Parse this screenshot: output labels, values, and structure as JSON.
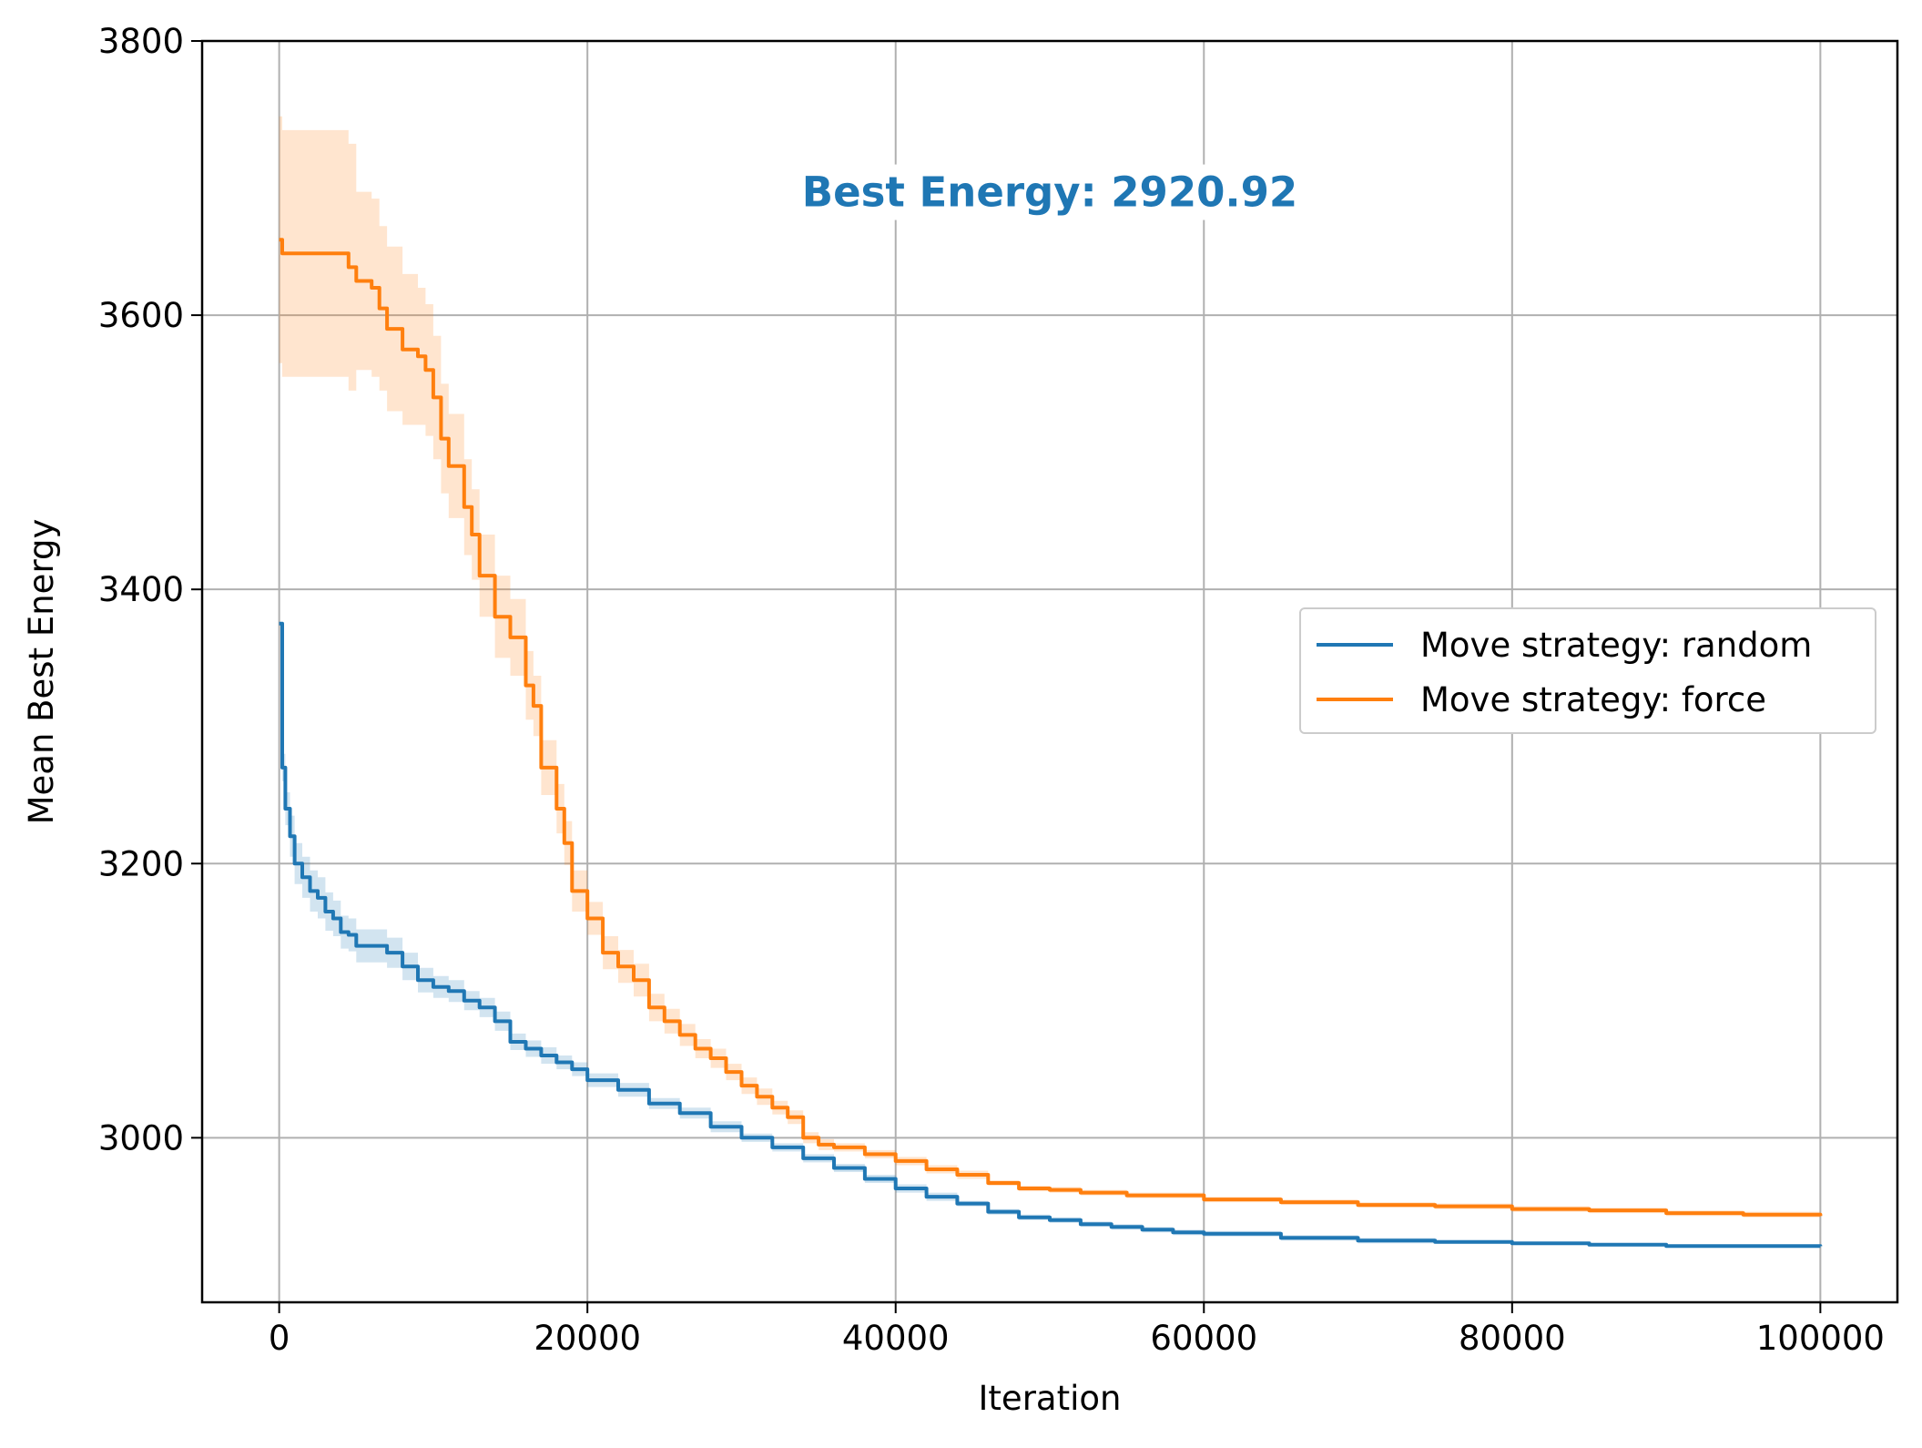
{
  "chart_data": {
    "type": "line",
    "title": "",
    "xlabel": "Iteration",
    "ylabel": "Mean Best Energy",
    "xlim": [
      -5000,
      105000
    ],
    "ylim": [
      2880,
      3800
    ],
    "xticks": [
      0,
      20000,
      40000,
      60000,
      80000,
      100000
    ],
    "xtick_labels": [
      "0",
      "20000",
      "40000",
      "60000",
      "80000",
      "100000"
    ],
    "yticks": [
      3000,
      3200,
      3400,
      3600,
      3800
    ],
    "ytick_labels": [
      "3000",
      "3200",
      "3400",
      "3600",
      "3800"
    ],
    "grid": true,
    "legend_position": "center-right",
    "annotation": {
      "text": "Best Energy: 2920.92",
      "x": 50000,
      "y": 3690,
      "color": "#1f77b4"
    },
    "series": [
      {
        "name": "Move strategy: random",
        "color": "#1f77b4",
        "band_color": "#1f77b4",
        "x": [
          0,
          200,
          400,
          700,
          1000,
          1500,
          2000,
          2500,
          3000,
          3500,
          4000,
          4500,
          5000,
          6000,
          7000,
          8000,
          9000,
          10000,
          11000,
          12000,
          13000,
          14000,
          15000,
          16000,
          17000,
          18000,
          19000,
          20000,
          22000,
          24000,
          26000,
          28000,
          30000,
          32000,
          34000,
          36000,
          38000,
          40000,
          42000,
          44000,
          46000,
          48000,
          50000,
          52000,
          54000,
          56000,
          58000,
          60000,
          65000,
          70000,
          75000,
          80000,
          85000,
          90000,
          95000,
          100000
        ],
        "y": [
          3375,
          3270,
          3240,
          3220,
          3200,
          3190,
          3180,
          3175,
          3165,
          3160,
          3150,
          3148,
          3140,
          3140,
          3135,
          3125,
          3115,
          3110,
          3107,
          3100,
          3095,
          3085,
          3070,
          3065,
          3060,
          3055,
          3050,
          3042,
          3035,
          3025,
          3018,
          3008,
          3000,
          2993,
          2985,
          2978,
          2970,
          2963,
          2957,
          2952,
          2946,
          2942,
          2940,
          2937,
          2935,
          2933,
          2931,
          2930,
          2927,
          2925,
          2924,
          2923,
          2922,
          2921,
          2921,
          2920.92
        ],
        "band": [
          0,
          10,
          12,
          15,
          15,
          15,
          15,
          15,
          14,
          13,
          12,
          12,
          12,
          12,
          11,
          10,
          9,
          8,
          8,
          7,
          7,
          7,
          6,
          6,
          6,
          5,
          5,
          5,
          5,
          4,
          4,
          4,
          3,
          3,
          3,
          3,
          3,
          3,
          3,
          2,
          2,
          2,
          2,
          2,
          2,
          2,
          2,
          2,
          2,
          2,
          1,
          1,
          1,
          1,
          1,
          1
        ]
      },
      {
        "name": "Move strategy: force",
        "color": "#ff7f0e",
        "band_color": "#ff7f0e",
        "x": [
          0,
          200,
          1000,
          2000,
          3000,
          4200,
          4500,
          5000,
          6000,
          6500,
          7000,
          8000,
          9000,
          9500,
          10000,
          10500,
          11000,
          12000,
          12500,
          13000,
          14000,
          15000,
          16000,
          16500,
          17000,
          18000,
          18500,
          19000,
          20000,
          21000,
          22000,
          23000,
          24000,
          25000,
          26000,
          27000,
          28000,
          29000,
          30000,
          31000,
          32000,
          33000,
          34000,
          35000,
          36000,
          38000,
          40000,
          42000,
          44000,
          46000,
          48000,
          50000,
          52000,
          55000,
          60000,
          65000,
          70000,
          75000,
          80000,
          85000,
          90000,
          95000,
          100000
        ],
        "y": [
          3655,
          3645,
          3645,
          3645,
          3645,
          3645,
          3635,
          3625,
          3620,
          3605,
          3590,
          3575,
          3570,
          3560,
          3540,
          3510,
          3490,
          3460,
          3440,
          3410,
          3380,
          3365,
          3330,
          3315,
          3270,
          3240,
          3215,
          3180,
          3160,
          3135,
          3125,
          3115,
          3095,
          3085,
          3075,
          3065,
          3058,
          3048,
          3038,
          3030,
          3022,
          3015,
          3000,
          2995,
          2993,
          2988,
          2983,
          2977,
          2973,
          2967,
          2963,
          2962,
          2960,
          2958,
          2955,
          2953,
          2951,
          2950,
          2948,
          2947,
          2945,
          2944,
          2943
        ],
        "band": [
          90,
          90,
          90,
          90,
          90,
          90,
          90,
          65,
          65,
          60,
          60,
          55,
          50,
          48,
          45,
          40,
          38,
          35,
          33,
          30,
          30,
          28,
          25,
          22,
          20,
          18,
          16,
          15,
          12,
          12,
          12,
          12,
          10,
          9,
          8,
          7,
          7,
          6,
          6,
          6,
          5,
          5,
          4,
          4,
          3,
          3,
          3,
          3,
          3,
          2,
          2,
          2,
          2,
          2,
          2,
          2,
          2,
          2,
          2,
          2,
          2,
          2,
          2
        ]
      }
    ]
  }
}
